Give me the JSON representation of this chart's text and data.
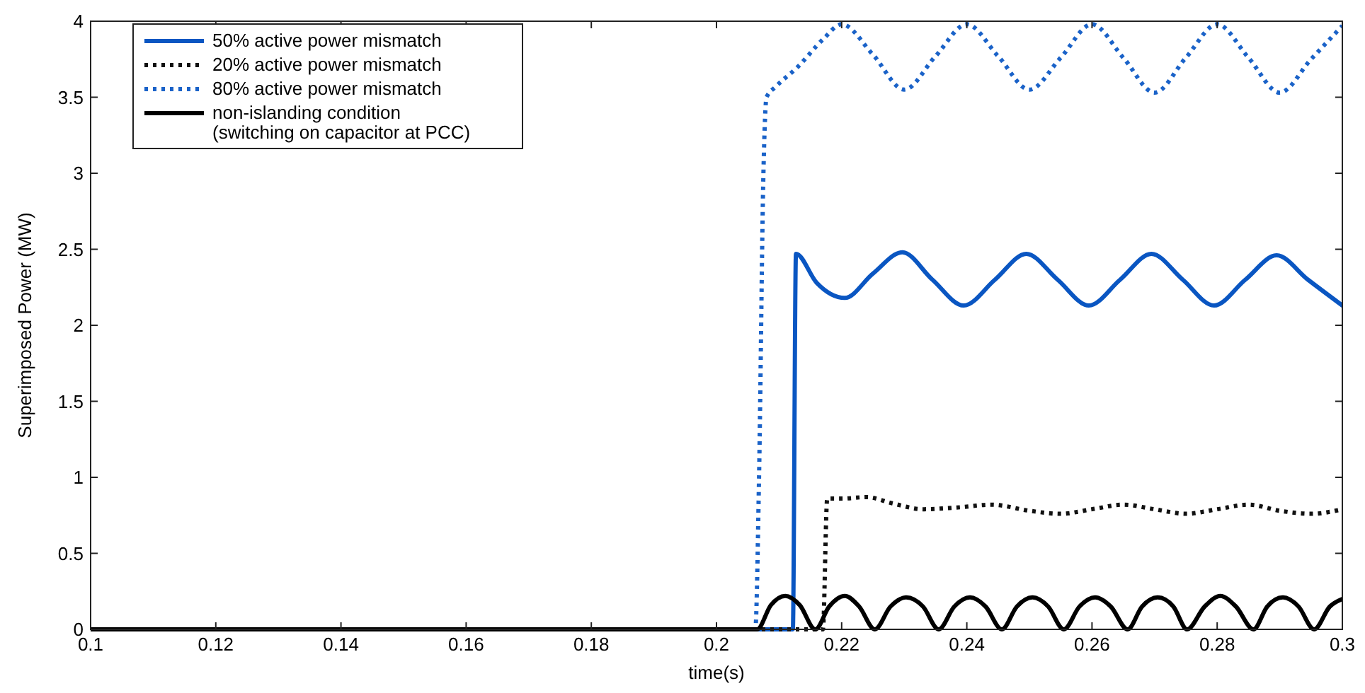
{
  "chart_data": {
    "type": "line",
    "xlabel": "time(s)",
    "ylabel": "Superimposed Power (MW)",
    "xlim": [
      0.1,
      0.3
    ],
    "ylim": [
      0,
      4
    ],
    "xticks": [
      0.1,
      0.12,
      0.14,
      0.16,
      0.18,
      0.2,
      0.22,
      0.24,
      0.26,
      0.28,
      0.3
    ],
    "yticks": [
      0,
      0.5,
      1,
      1.5,
      2,
      2.5,
      3,
      3.5,
      4
    ],
    "grid": false,
    "legend": "top left",
    "series": [
      {
        "name": "50% active power mismatch",
        "color": "#0a56c2",
        "line_style": "solid",
        "x": [
          0.1,
          0.2122,
          0.2127,
          0.216,
          0.2205,
          0.225,
          0.2297,
          0.2345,
          0.2395,
          0.2445,
          0.2495,
          0.2545,
          0.2595,
          0.2645,
          0.2695,
          0.2745,
          0.2795,
          0.2845,
          0.2895,
          0.2945,
          0.3
        ],
        "values": [
          0,
          0,
          2.47,
          2.28,
          2.18,
          2.34,
          2.48,
          2.3,
          2.13,
          2.3,
          2.47,
          2.3,
          2.13,
          2.3,
          2.47,
          2.3,
          2.13,
          2.3,
          2.46,
          2.3,
          2.13
        ]
      },
      {
        "name": "20% active power mismatch",
        "color": "#111111",
        "line_style": "dotted",
        "x": [
          0.1,
          0.217,
          0.2177,
          0.22,
          0.224,
          0.228,
          0.233,
          0.238,
          0.244,
          0.25,
          0.255,
          0.26,
          0.265,
          0.27,
          0.275,
          0.28,
          0.285,
          0.29,
          0.295,
          0.3
        ],
        "values": [
          0,
          0,
          0.86,
          0.86,
          0.87,
          0.83,
          0.79,
          0.8,
          0.82,
          0.78,
          0.76,
          0.79,
          0.82,
          0.79,
          0.76,
          0.79,
          0.82,
          0.78,
          0.76,
          0.79
        ]
      },
      {
        "name": "80% active power mismatch",
        "color": "#1a62c8",
        "line_style": "dotted",
        "x": [
          0.1,
          0.2062,
          0.2068,
          0.2075,
          0.208,
          0.2095,
          0.213,
          0.217,
          0.22,
          0.225,
          0.23,
          0.235,
          0.24,
          0.245,
          0.25,
          0.255,
          0.26,
          0.265,
          0.27,
          0.275,
          0.28,
          0.285,
          0.29,
          0.295,
          0.3
        ],
        "values": [
          0,
          0,
          1,
          3,
          3.5,
          3.57,
          3.7,
          3.88,
          3.98,
          3.78,
          3.55,
          3.77,
          3.98,
          3.77,
          3.55,
          3.76,
          3.98,
          3.76,
          3.53,
          3.76,
          3.98,
          3.76,
          3.53,
          3.75,
          3.97
        ]
      },
      {
        "name": "non-islanding condition\n(switching on capacitor at PCC)",
        "color": "#000000",
        "line_style": "solid",
        "x": [
          0.1,
          0.2065,
          0.2087,
          0.211,
          0.2133,
          0.2158,
          0.218,
          0.2205,
          0.2228,
          0.2253,
          0.2278,
          0.2303,
          0.233,
          0.2355,
          0.238,
          0.2405,
          0.243,
          0.2456,
          0.248,
          0.2505,
          0.253,
          0.2555,
          0.258,
          0.2605,
          0.263,
          0.2657,
          0.268,
          0.2705,
          0.273,
          0.2752,
          0.278,
          0.2805,
          0.283,
          0.2858,
          0.288,
          0.2905,
          0.293,
          0.2955,
          0.298,
          0.3
        ],
        "values": [
          0,
          0,
          0.16,
          0.22,
          0.16,
          0,
          0.15,
          0.22,
          0.15,
          0,
          0.15,
          0.21,
          0.15,
          0,
          0.15,
          0.21,
          0.15,
          0,
          0.15,
          0.21,
          0.15,
          0,
          0.15,
          0.21,
          0.15,
          0,
          0.15,
          0.21,
          0.15,
          0,
          0.15,
          0.22,
          0.15,
          0,
          0.15,
          0.21,
          0.15,
          0,
          0.15,
          0.2
        ]
      }
    ]
  }
}
